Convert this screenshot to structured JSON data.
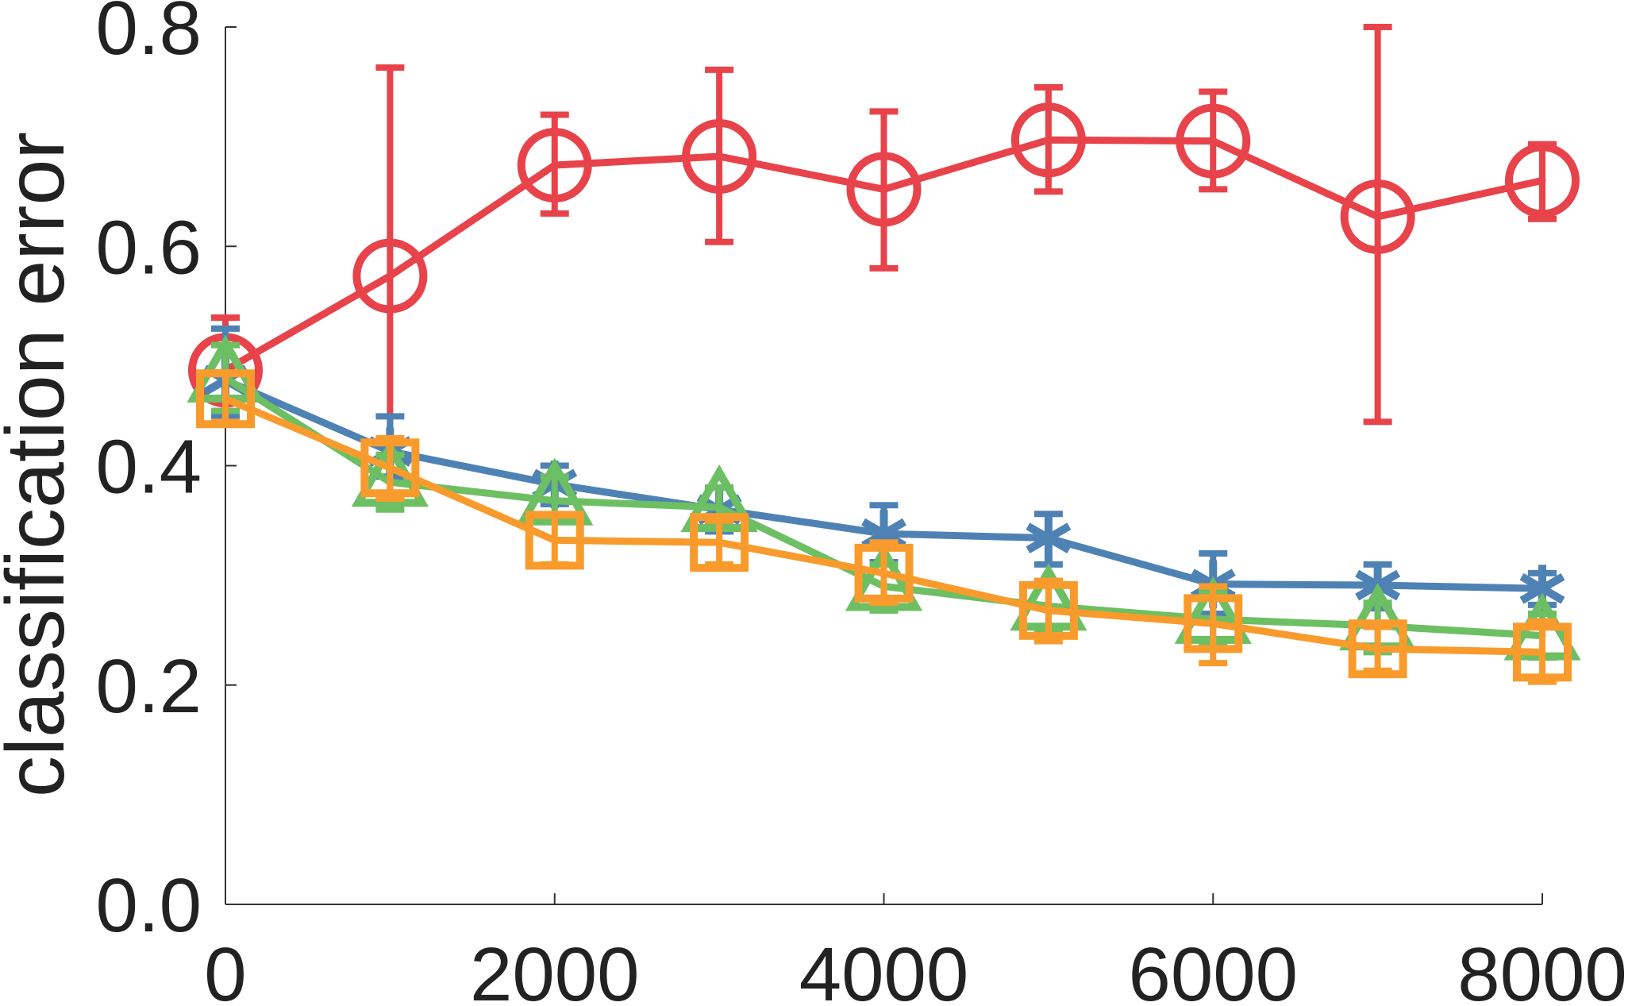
{
  "chart_data": {
    "type": "line",
    "title": "",
    "xlabel": "",
    "ylabel": "classification error",
    "xlim": [
      0,
      8000
    ],
    "ylim": [
      0,
      0.8
    ],
    "xticks": [
      0,
      2000,
      4000,
      6000,
      8000
    ],
    "xtick_labels": [
      "0",
      "2000",
      "4000",
      "6000",
      "8000"
    ],
    "yticks": [
      0,
      0.2,
      0.4,
      0.6,
      0.8
    ],
    "ytick_labels": [
      "0.0",
      "0.2",
      "0.4",
      "0.6",
      "0.8"
    ],
    "grid": false,
    "legend": false,
    "x": [
      0,
      1000,
      2000,
      3000,
      4000,
      5000,
      6000,
      7000,
      8000
    ],
    "series": [
      {
        "color": "#e8434a",
        "marker": "circle",
        "values": [
          0.487,
          0.573,
          0.674,
          0.682,
          0.652,
          0.697,
          0.696,
          0.627,
          0.66
        ],
        "err_low": [
          0.44,
          0.37,
          0.63,
          0.604,
          0.58,
          0.65,
          0.652,
          0.44,
          0.625
        ],
        "err_high": [
          0.535,
          0.763,
          0.72,
          0.761,
          0.723,
          0.745,
          0.741,
          0.8,
          0.693
        ]
      },
      {
        "color": "#4f82b4",
        "marker": "star",
        "values": [
          0.478,
          0.413,
          0.383,
          0.36,
          0.338,
          0.334,
          0.292,
          0.291,
          0.288
        ],
        "err_low": [
          0.445,
          0.39,
          0.365,
          0.34,
          0.312,
          0.31,
          0.265,
          0.27,
          0.273
        ],
        "err_high": [
          0.525,
          0.445,
          0.4,
          0.38,
          0.364,
          0.356,
          0.32,
          0.31,
          0.302
        ]
      },
      {
        "color": "#6cbf62",
        "marker": "triangle",
        "values": [
          0.48,
          0.385,
          0.368,
          0.362,
          0.29,
          0.272,
          0.26,
          0.254,
          0.245
        ],
        "err_low": [
          0.45,
          0.36,
          0.35,
          0.345,
          0.268,
          0.25,
          0.238,
          0.23,
          0.225
        ],
        "err_high": [
          0.51,
          0.41,
          0.39,
          0.38,
          0.31,
          0.295,
          0.285,
          0.275,
          0.265
        ]
      },
      {
        "color": "#f99b2c",
        "marker": "square",
        "values": [
          0.461,
          0.398,
          0.332,
          0.33,
          0.302,
          0.268,
          0.256,
          0.233,
          0.23
        ],
        "err_low": [
          0.44,
          0.37,
          0.31,
          0.31,
          0.275,
          0.24,
          0.22,
          0.213,
          0.203
        ],
        "err_high": [
          0.485,
          0.425,
          0.355,
          0.35,
          0.33,
          0.295,
          0.29,
          0.253,
          0.258
        ]
      }
    ]
  }
}
